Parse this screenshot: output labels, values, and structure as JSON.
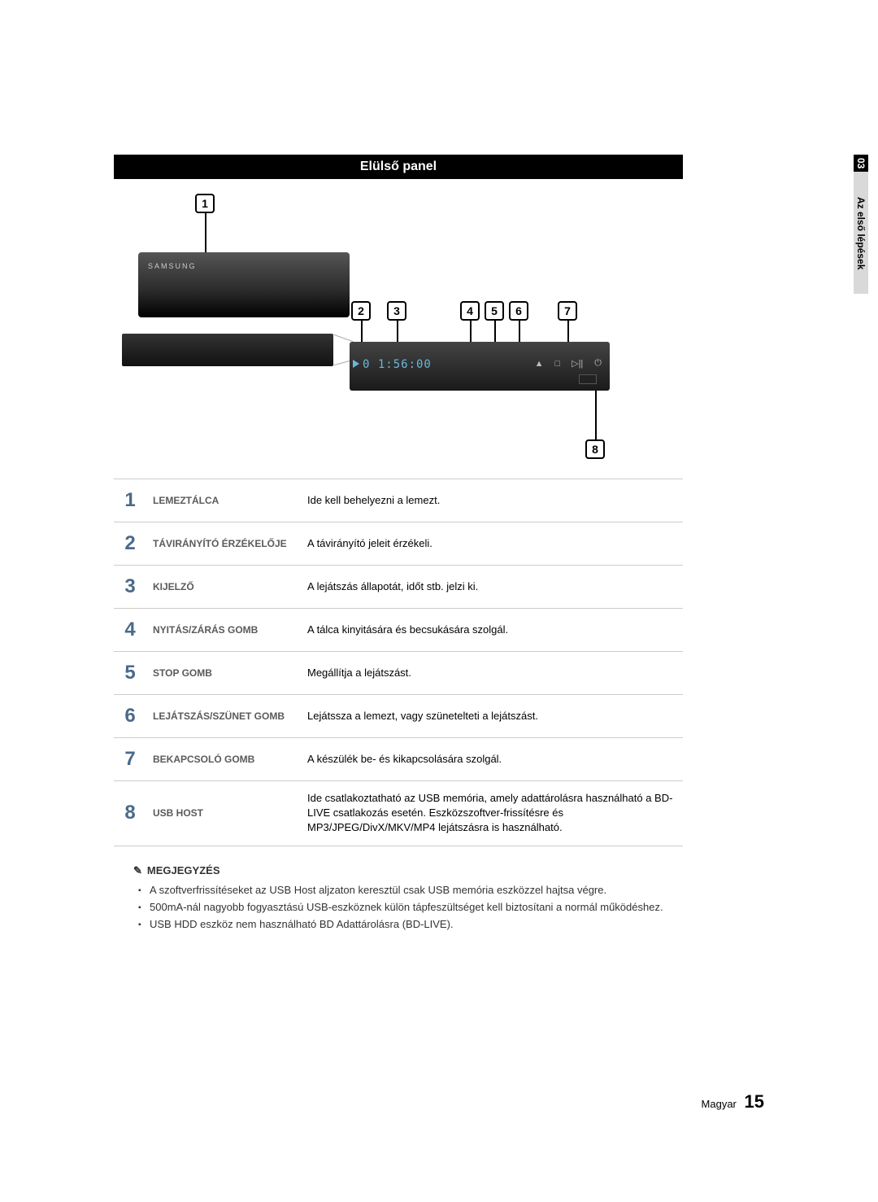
{
  "side_tab": {
    "num": "03",
    "label": "Az első lépések"
  },
  "header": "Elülső panel",
  "device_brand": "SAMSUNG",
  "display_time": "0 1:56:00",
  "callouts": [
    "1",
    "2",
    "3",
    "4",
    "5",
    "6",
    "7",
    "8"
  ],
  "parts": [
    {
      "n": "1",
      "name": "LEMEZTÁLCA",
      "desc": "Ide kell behelyezni a lemezt."
    },
    {
      "n": "2",
      "name": "TÁVIRÁNYÍTÓ ÉRZÉKELŐJE",
      "desc": "A távirányító jeleit érzékeli."
    },
    {
      "n": "3",
      "name": "KIJELZŐ",
      "desc": "A lejátszás állapotát, időt stb. jelzi ki."
    },
    {
      "n": "4",
      "name": "NYITÁS/ZÁRÁS GOMB",
      "desc": "A tálca kinyitására és becsukására szolgál."
    },
    {
      "n": "5",
      "name": "STOP GOMB",
      "desc": "Megállítja a lejátszást."
    },
    {
      "n": "6",
      "name": "LEJÁTSZÁS/SZÜNET GOMB",
      "desc": "Lejátssza a lemezt, vagy szünetelteti a lejátszást."
    },
    {
      "n": "7",
      "name": "BEKAPCSOLÓ GOMB",
      "desc": "A készülék be- és kikapcsolására szolgál."
    },
    {
      "n": "8",
      "name": "USB HOST",
      "desc": "Ide csatlakoztatható az USB memória, amely adattárolásra használható a BD-LIVE csatlakozás esetén. Eszközszoftver-frissítésre és MP3/JPEG/DivX/MKV/MP4 lejátszásra is használható."
    }
  ],
  "notes_title": "MEGJEGYZÉS",
  "notes": [
    "A szoftverfrissítéseket az USB Host aljzaton keresztül csak USB memória eszközzel hajtsa végre.",
    "500mA-nál nagyobb fogyasztású USB-eszköznek külön tápfeszültséget kell biztosítani a normál működéshez.",
    "USB HDD eszköz nem használható BD Adattárolásra (BD-LIVE)."
  ],
  "footer": {
    "lang": "Magyar",
    "page": "15"
  },
  "colors": {
    "num_color": "#4a6a8a",
    "header_bg": "#000000",
    "display_color": "#6bb8d8"
  }
}
